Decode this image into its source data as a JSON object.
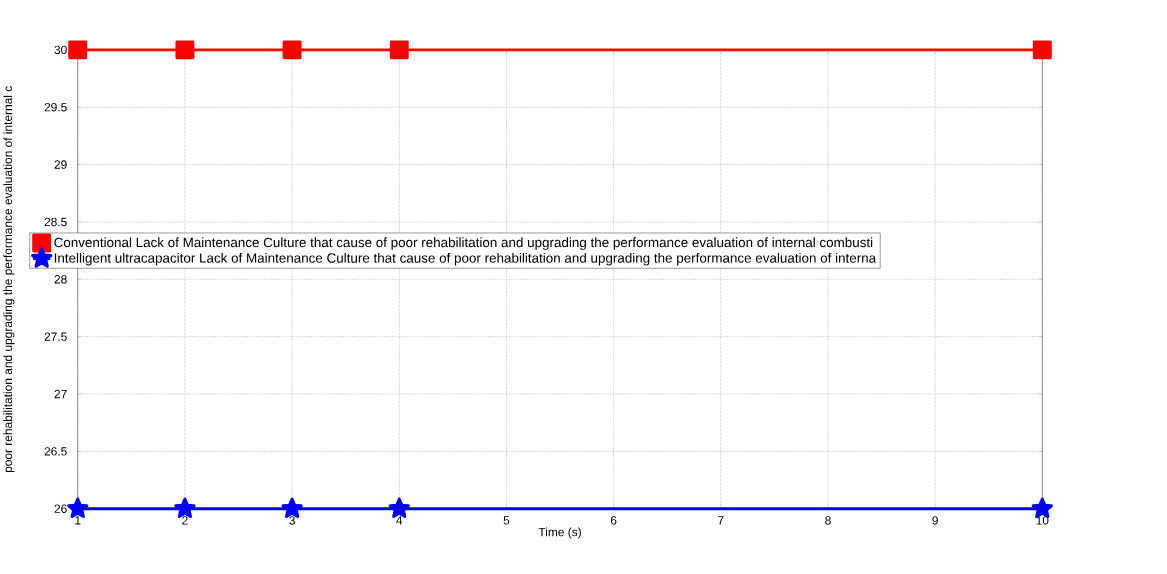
{
  "chart_data": {
    "type": "line",
    "xlabel": "Time (s)",
    "ylabel": "poor rehabilitation and upgrading the performance evaluation of internal c",
    "x": [
      1,
      2,
      3,
      4,
      10
    ],
    "series": [
      {
        "name": "Conventional Lack of Maintenance Culture that cause of poor rehabilitation and upgrading the performance evaluation of internal combusti",
        "color": "#ff0000",
        "marker": "square",
        "values": [
          30,
          30,
          30,
          30,
          30
        ]
      },
      {
        "name": "Intelligent ultracapacitor Lack of Maintenance Culture that cause of poor rehabilitation and upgrading the performance evaluation of interna",
        "color": "#0000ff",
        "marker": "star",
        "values": [
          26,
          26,
          26,
          26,
          26
        ]
      }
    ],
    "xlim": [
      1,
      10
    ],
    "ylim": [
      26,
      30
    ],
    "xticks": [
      1,
      2,
      3,
      4,
      5,
      6,
      7,
      8,
      9,
      10
    ],
    "yticks": [
      26,
      26.5,
      27,
      27.5,
      28,
      28.5,
      29,
      29.5,
      30
    ],
    "grid": true,
    "legend": "left",
    "line_style": "solid"
  }
}
